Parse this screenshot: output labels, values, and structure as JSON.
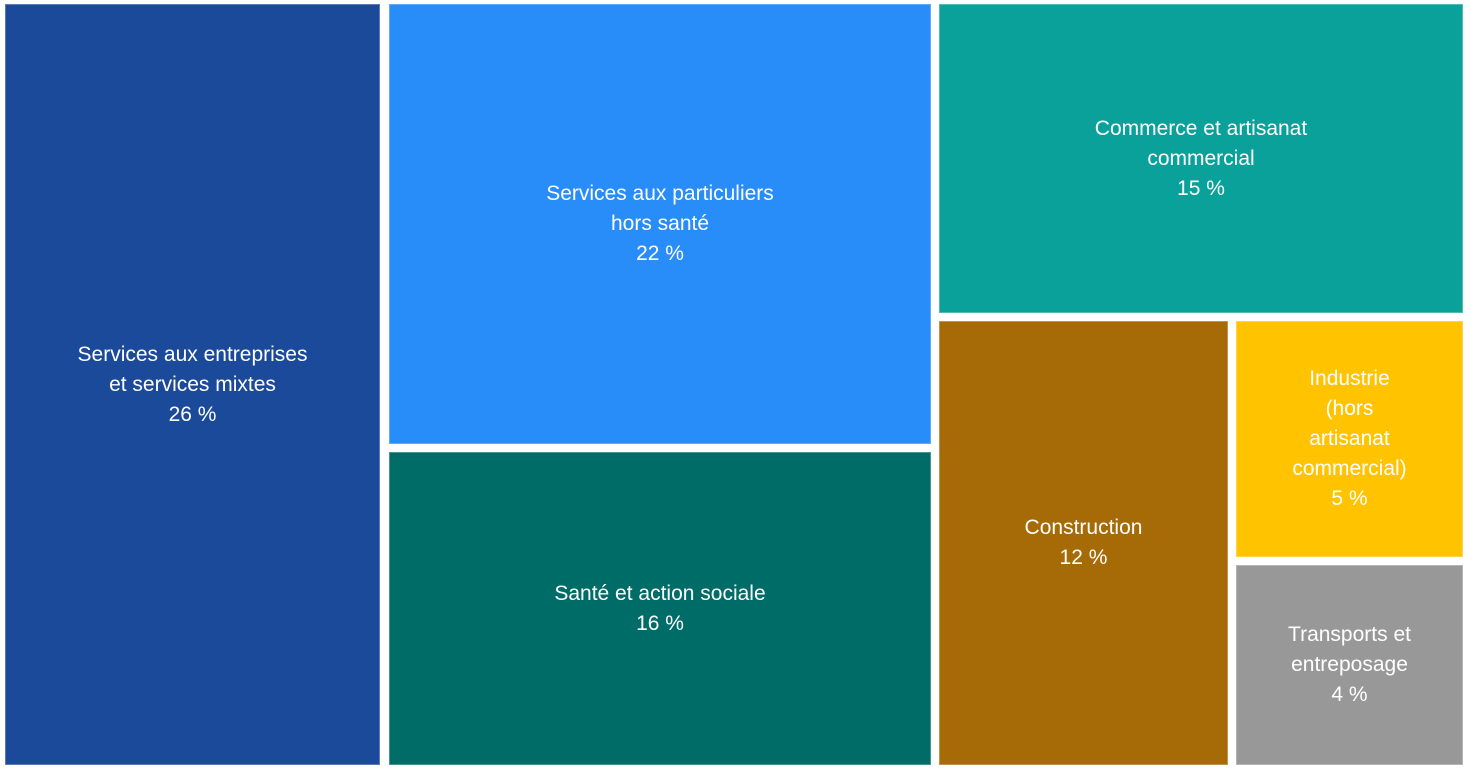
{
  "chart_data": {
    "type": "treemap",
    "unit": "%",
    "legend": "none",
    "grid": false,
    "background_color": "#FFFFFF",
    "label_text_color": "#FFFFFF",
    "categories": [
      "Services aux entreprises et services mixtes",
      "Services aux particuliers hors santé",
      "Santé et action sociale",
      "Commerce et artisanat commercial",
      "Construction",
      "Industrie (hors artisanat commercial)",
      "Transports et entreposage"
    ],
    "values": [
      26,
      22,
      16,
      15,
      12,
      5,
      4
    ],
    "value_labels": [
      "26 %",
      "22 %",
      "16 %",
      "15 %",
      "12 %",
      "5 %",
      "4 %"
    ],
    "colors": [
      "#1C4A9B",
      "#288DF8",
      "#006C68",
      "#0AA19B",
      "#A66A06",
      "#FFC300",
      "#989898"
    ],
    "tiles": [
      {
        "label": "Services aux entreprises et services mixtes",
        "value": 26,
        "value_label": "26 %",
        "color": "#1C4A9B",
        "lines": [
          "Services aux entreprises",
          "et services mixtes",
          "26 %"
        ]
      },
      {
        "label": "Services aux particuliers hors santé",
        "value": 22,
        "value_label": "22 %",
        "color": "#288DF8",
        "lines": [
          "Services aux particuliers",
          "hors santé",
          "22 %"
        ]
      },
      {
        "label": "Santé et action sociale",
        "value": 16,
        "value_label": "16 %",
        "color": "#006C68",
        "lines": [
          "Santé et action sociale",
          "16 %"
        ]
      },
      {
        "label": "Commerce et artisanat commercial",
        "value": 15,
        "value_label": "15 %",
        "color": "#0AA19B",
        "lines": [
          "Commerce et artisanat",
          "commercial",
          "15 %"
        ]
      },
      {
        "label": "Construction",
        "value": 12,
        "value_label": "12 %",
        "color": "#A66A06",
        "lines": [
          "Construction",
          "12 %"
        ]
      },
      {
        "label": "Industrie (hors artisanat commercial)",
        "value": 5,
        "value_label": "5 %",
        "color": "#FFC300",
        "lines": [
          "Industrie",
          "(hors",
          "artisanat",
          "commercial)",
          "5 %"
        ]
      },
      {
        "label": "Transports et entreposage",
        "value": 4,
        "value_label": "4 %",
        "color": "#989898",
        "lines": [
          "Transports et",
          "entreposage",
          "4 %"
        ]
      }
    ]
  }
}
